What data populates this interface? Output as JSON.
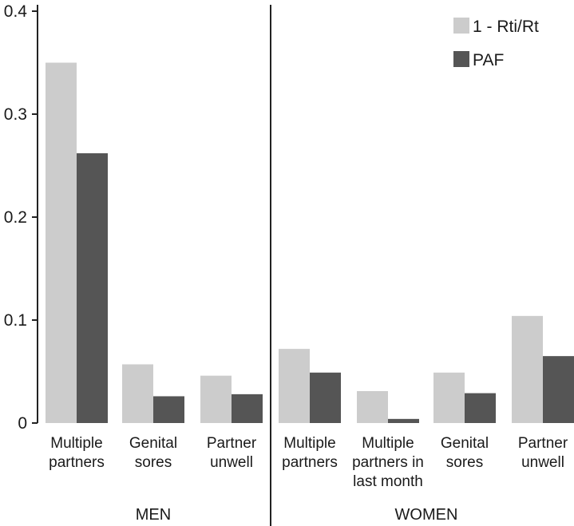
{
  "chart_data": {
    "type": "bar",
    "title": "",
    "xlabel": "",
    "ylabel": "",
    "ylim": [
      0,
      0.4
    ],
    "yticks": [
      "0",
      "0.1",
      "0.2",
      "0.3",
      "0.4"
    ],
    "grid": false,
    "legend_position": "top-right",
    "groups": [
      {
        "label": "MEN",
        "categories": [
          [
            "Multiple",
            "partners"
          ],
          [
            "Genital",
            "sores"
          ],
          [
            "Partner",
            "unwell"
          ]
        ]
      },
      {
        "label": "WOMEN",
        "categories": [
          [
            "Multiple",
            "partners"
          ],
          [
            "Multiple",
            "partners in",
            "last month"
          ],
          [
            "Genital",
            "sores"
          ],
          [
            "Partner",
            "unwell"
          ]
        ]
      }
    ],
    "series": [
      {
        "name": "1 - Rti/Rt",
        "color": "#cccccc",
        "values": [
          0.35,
          0.057,
          0.046,
          0.072,
          0.031,
          0.049,
          0.104
        ]
      },
      {
        "name": "PAF",
        "color": "#555555",
        "values": [
          0.262,
          0.026,
          0.028,
          0.049,
          0.004,
          0.029,
          0.065
        ]
      }
    ]
  }
}
